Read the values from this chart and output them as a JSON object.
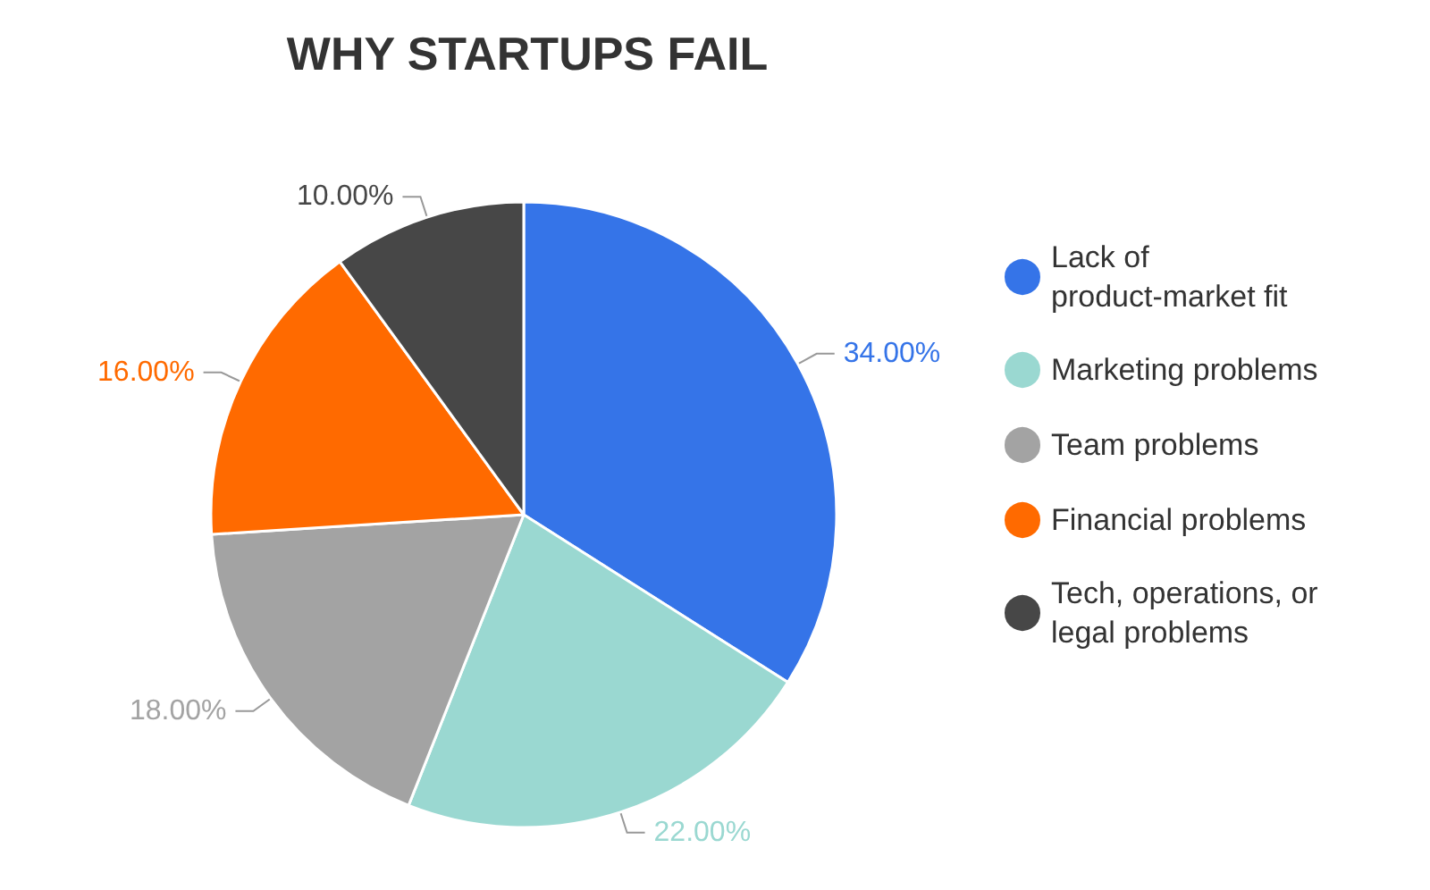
{
  "chart_data": {
    "type": "pie",
    "title": "WHY STARTUPS FAIL",
    "categories": [
      "Lack of product-market fit",
      "Marketing problems",
      "Team problems",
      "Financial problems",
      "Tech, operations, or legal problems"
    ],
    "values": [
      34,
      22,
      18,
      16,
      10
    ],
    "colors": [
      "#3574e8",
      "#9ad8d1",
      "#a3a3a3",
      "#ff6a00",
      "#474747"
    ],
    "value_labels": [
      "34.00%",
      "22.00%",
      "18.00%",
      "16.00%",
      "10.00%"
    ],
    "legend": "right"
  }
}
